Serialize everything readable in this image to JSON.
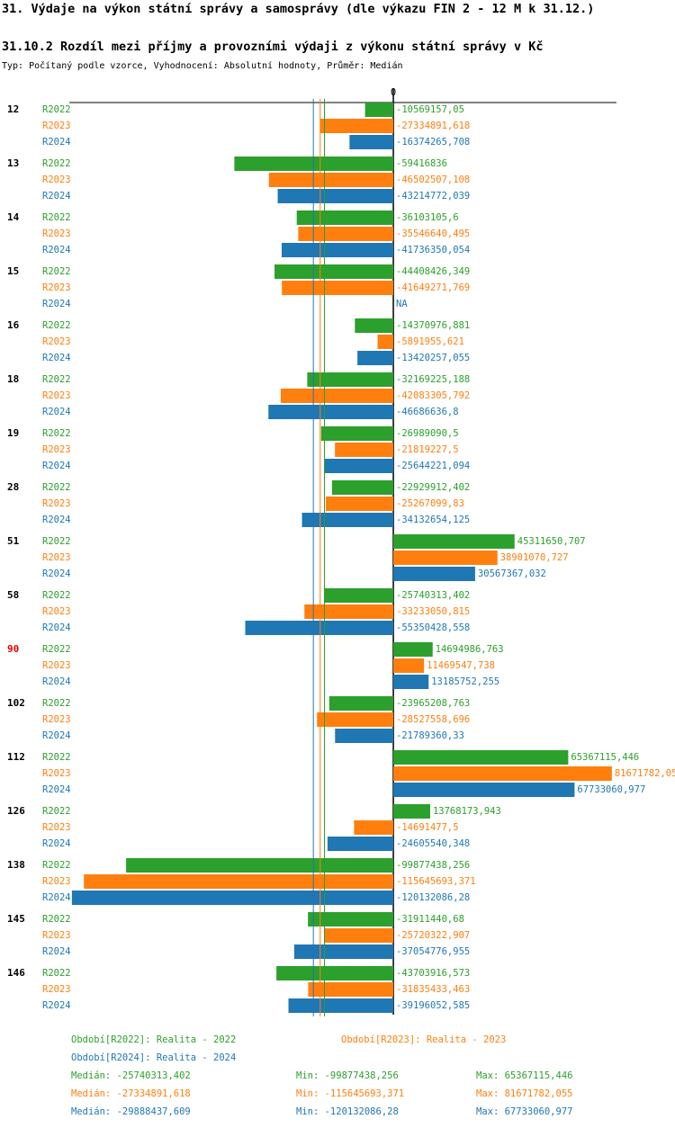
{
  "header": {
    "title": "31. Výdaje na výkon státní správy a samosprávy (dle výkazu FIN 2 - 12 M k 31.12.)",
    "subtitle": "31.10.2 Rozdíl mezi příjmy a provozními výdaji z výkonu státní správy v Kč",
    "note": "Typ: Počítaný podle vzorce, Vyhodnocení: Absolutní hodnoty, Průměr: Medián"
  },
  "chart_data": {
    "type": "hbar",
    "categories": [
      "12",
      "13",
      "14",
      "15",
      "16",
      "18",
      "19",
      "28",
      "51",
      "58",
      "90",
      "102",
      "112",
      "126",
      "138",
      "145",
      "146"
    ],
    "highlight": {
      "index": 10,
      "color": "#e00000"
    },
    "xlim": [
      -121100000,
      83400000
    ],
    "xticks": [
      0
    ],
    "series": [
      {
        "name": "R2022",
        "color": "#2ca02c",
        "legend": "Období[R2022]: Realita - 2022",
        "values": [
          -10569157.05,
          -59416836,
          -36103105.6,
          -44408426.349,
          -14370976.881,
          -32169225.188,
          -26989090.5,
          -22929912.402,
          45311650.707,
          -25740313.402,
          14694986.763,
          -23965208.763,
          65367115.446,
          13768173.943,
          -99877438.256,
          -31911440.68,
          -43703916.573
        ],
        "value_labels": [
          "-10569157,05",
          "-59416836",
          "-36103105,6",
          "-44408426,349",
          "-14370976,881",
          "-32169225,188",
          "-26989090,5",
          "-22929912,402",
          "45311650,707",
          "-25740313,402",
          "14694986,763",
          "-23965208,763",
          "65367115,446",
          "13768173,943",
          "-99877438,256",
          "-31911440,68",
          "-43703916,573"
        ],
        "median": -25740313.402,
        "stats": [
          "Medián: -25740313,402",
          "Min: -99877438,256",
          "Max: 65367115,446"
        ]
      },
      {
        "name": "R2023",
        "color": "#ff7f0e",
        "legend": "Období[R2023]: Realita - 2023",
        "values": [
          -27334891.618,
          -46502507.108,
          -35546640.495,
          -41649271.769,
          -5891955.621,
          -42083305.792,
          -21819227.5,
          -25267099.83,
          38901070.727,
          -33233050.815,
          11469547.738,
          -28527558.696,
          81671782.05,
          -14691477.5,
          -115645693.371,
          -25720322.907,
          -31835433.463
        ],
        "value_labels": [
          "-27334891,618",
          "-46502507,108",
          "-35546640,495",
          "-41649271,769",
          "-5891955,621",
          "-42083305,792",
          "-21819227,5",
          "-25267099,83",
          "38901070,727",
          "-33233050,815",
          "11469547,738",
          "-28527558,696",
          "81671782,05",
          "-14691477,5",
          "-115645693,371",
          "-25720322,907",
          "-31835433,463"
        ],
        "median": -27334891.618,
        "stats": [
          "Medián: -27334891,618",
          "Min: -115645693,371",
          "Max: 81671782,055"
        ]
      },
      {
        "name": "R2024",
        "color": "#1f77b4",
        "legend": "Období[R2024]: Realita - 2024",
        "values": [
          -16374265.708,
          -43214772.039,
          -41736350.054,
          null,
          -13420257.055,
          -46686636.8,
          -25644221.094,
          -34132654.125,
          30567367.032,
          -55350428.558,
          13185752.255,
          -21789360.33,
          67733060.977,
          -24605540.348,
          -120132086.28,
          -37054776.955,
          -39196052.585
        ],
        "value_labels": [
          "-16374265,708",
          "-43214772,039",
          "-41736350,054",
          "NA",
          "-13420257,055",
          "-46686636,8",
          "-25644221,094",
          "-34132654,125",
          "30567367,032",
          "-55350428,558",
          "13185752,255",
          "-21789360,33",
          "67733060,977",
          "-24605540,348",
          "-120132086,28",
          "-37054776,955",
          "-39196052,585"
        ],
        "median": -29888437.609,
        "stats": [
          "Medián: -29888437,609",
          "Min: -120132086,28",
          "Max: 67733060,977"
        ]
      }
    ]
  }
}
